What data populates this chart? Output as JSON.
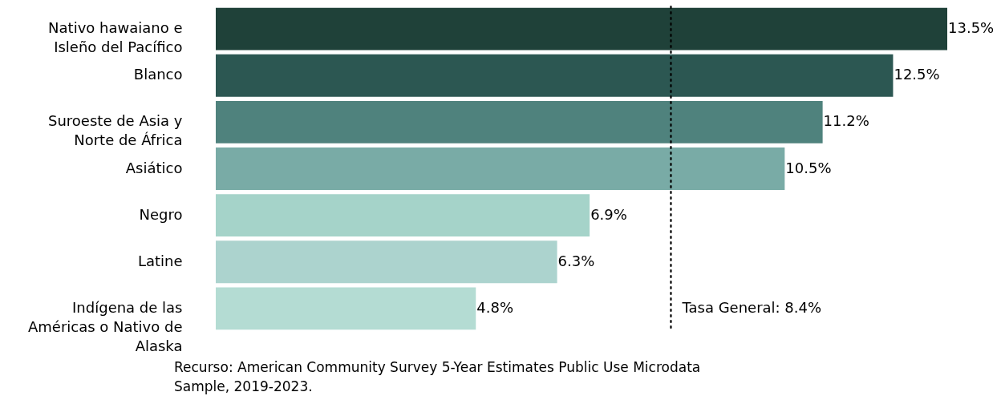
{
  "chart_data": {
    "type": "bar",
    "orientation": "horizontal",
    "categories": [
      "Nativo hawaiano e Isleño del Pacífico",
      "Blanco",
      "Suroeste de Asia y Norte de África",
      "Asiático",
      "Negro",
      "Latine",
      "Indígena de las Américas o Nativo de Alaska"
    ],
    "values": [
      13.5,
      12.5,
      11.2,
      10.5,
      6.9,
      6.3,
      4.8
    ],
    "colors": [
      "#1f4139",
      "#2c5752",
      "#4f827d",
      "#79aba6",
      "#a5d3c9",
      "#acd3ce",
      "#b4dcd3"
    ],
    "value_labels": [
      "13.5%",
      "12.5%",
      "11.2%",
      "10.5%",
      "6.9%",
      "6.3%",
      "4.8%"
    ],
    "ref_lines": [
      {
        "axis": "x",
        "value": 8.4,
        "label": "Tasa General: 8.4%",
        "line_style": "dotted",
        "color": "#000000"
      }
    ],
    "annotations": [
      "Recurso: American Community Survey 5-Year Estimates Public Use Microdata Sample, 2019-2023."
    ]
  }
}
